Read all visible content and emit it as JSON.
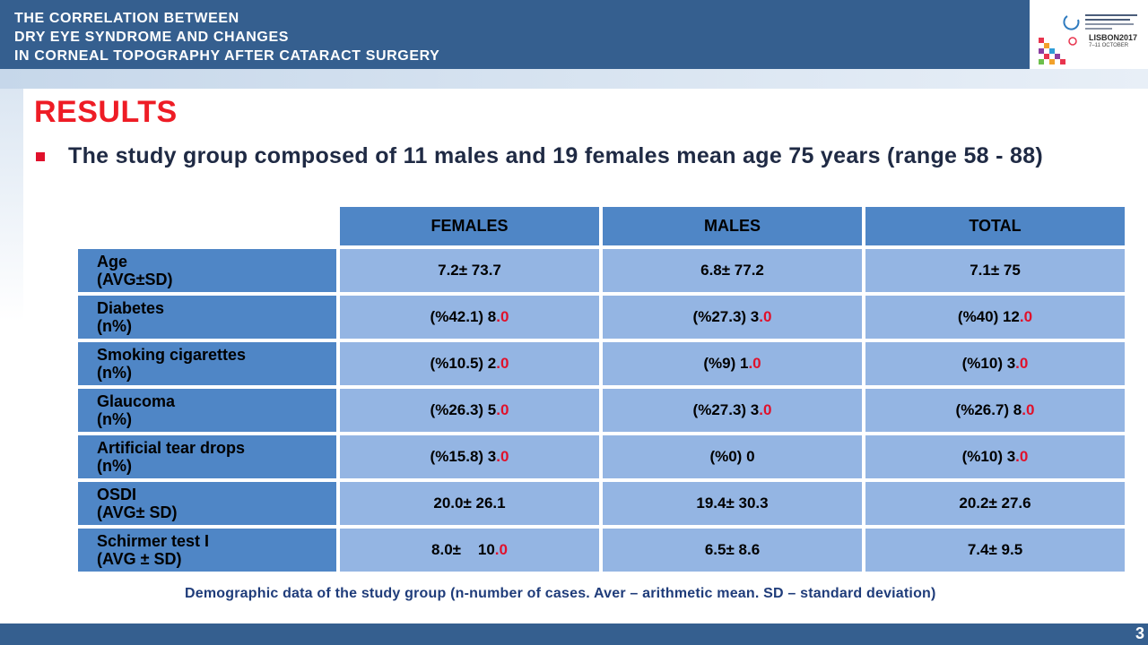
{
  "header": {
    "title_lines": [
      "THE CORRELATION BETWEEN",
      "DRY EYE SYNDROME AND CHANGES",
      "IN CORNEAL TOPOGRAPHY AFTER CATARACT SURGERY"
    ],
    "logo_event": "LISBON2017",
    "logo_dates": "7–11 OCTOBER"
  },
  "section_title": "RESULTS",
  "bullet_text": "The study group composed of 11 males and 19 females mean age 75 years (range 58 - 88)",
  "table": {
    "columns": [
      "FEMALES",
      "MALES",
      "TOTAL"
    ],
    "rows": [
      {
        "label1": "Age",
        "label2": "(AVG±SD)",
        "cells": [
          {
            "a": "7.2±  73.7",
            "b": ""
          },
          {
            "a": "6.8±  77.2",
            "b": ""
          },
          {
            "a": "7.1±  75",
            "b": ""
          }
        ]
      },
      {
        "label1": "Diabetes",
        "label2": "(n%)",
        "cells": [
          {
            "a": "(%42.1) 8",
            "b": ".0"
          },
          {
            "a": "(%27.3)  3",
            "b": ".0"
          },
          {
            "a": "(%40)  12",
            "b": ".0"
          }
        ]
      },
      {
        "label1": "Smoking cigarettes",
        "label2": "(n%)",
        "cells": [
          {
            "a": "(%10.5)  2",
            "b": ".0"
          },
          {
            "a": "(%9)  1",
            "b": ".0"
          },
          {
            "a": "(%10)  3",
            "b": ".0"
          }
        ]
      },
      {
        "label1": "Glaucoma",
        "label2": "(n%)",
        "cells": [
          {
            "a": "(%26.3)  5",
            "b": ".0"
          },
          {
            "a": "(%27.3)  3",
            "b": ".0"
          },
          {
            "a": "(%26.7)  8",
            "b": ".0"
          }
        ]
      },
      {
        "label1": "Artificial tear drops",
        "label2": "(n%)",
        "cells": [
          {
            "a": "(%15.8)  3",
            "b": ".0"
          },
          {
            "a": "(%0) 0",
            "b": ""
          },
          {
            "a": "(%10)  3",
            "b": ".0"
          }
        ]
      },
      {
        "label1": "OSDI",
        "label2": "(AVG± SD)",
        "cells": [
          {
            "a": "20.0±  26.1",
            "b": ""
          },
          {
            "a": "19.4±  30.3",
            "b": ""
          },
          {
            "a": "20.2±  27.6",
            "b": ""
          }
        ]
      },
      {
        "label1": "Schirmer test I",
        "label2": "(AVG ± SD)",
        "cells": [
          {
            "a": "8.0±    10",
            "b": ".0"
          },
          {
            "a": "6.5±  8.6",
            "b": ""
          },
          {
            "a": "7.4±  9.5",
            "b": ""
          }
        ]
      }
    ]
  },
  "caption": "Demographic data of the study group (n-number of cases. Aver – arithmetic mean. SD – standard deviation)",
  "page_number": "3",
  "colors": {
    "header_bg": "#355f8f",
    "title_red": "#ee1c25",
    "table_header": "#4f86c6",
    "table_cell": "#94b5e3",
    "highlight_red": "#e0112b"
  }
}
